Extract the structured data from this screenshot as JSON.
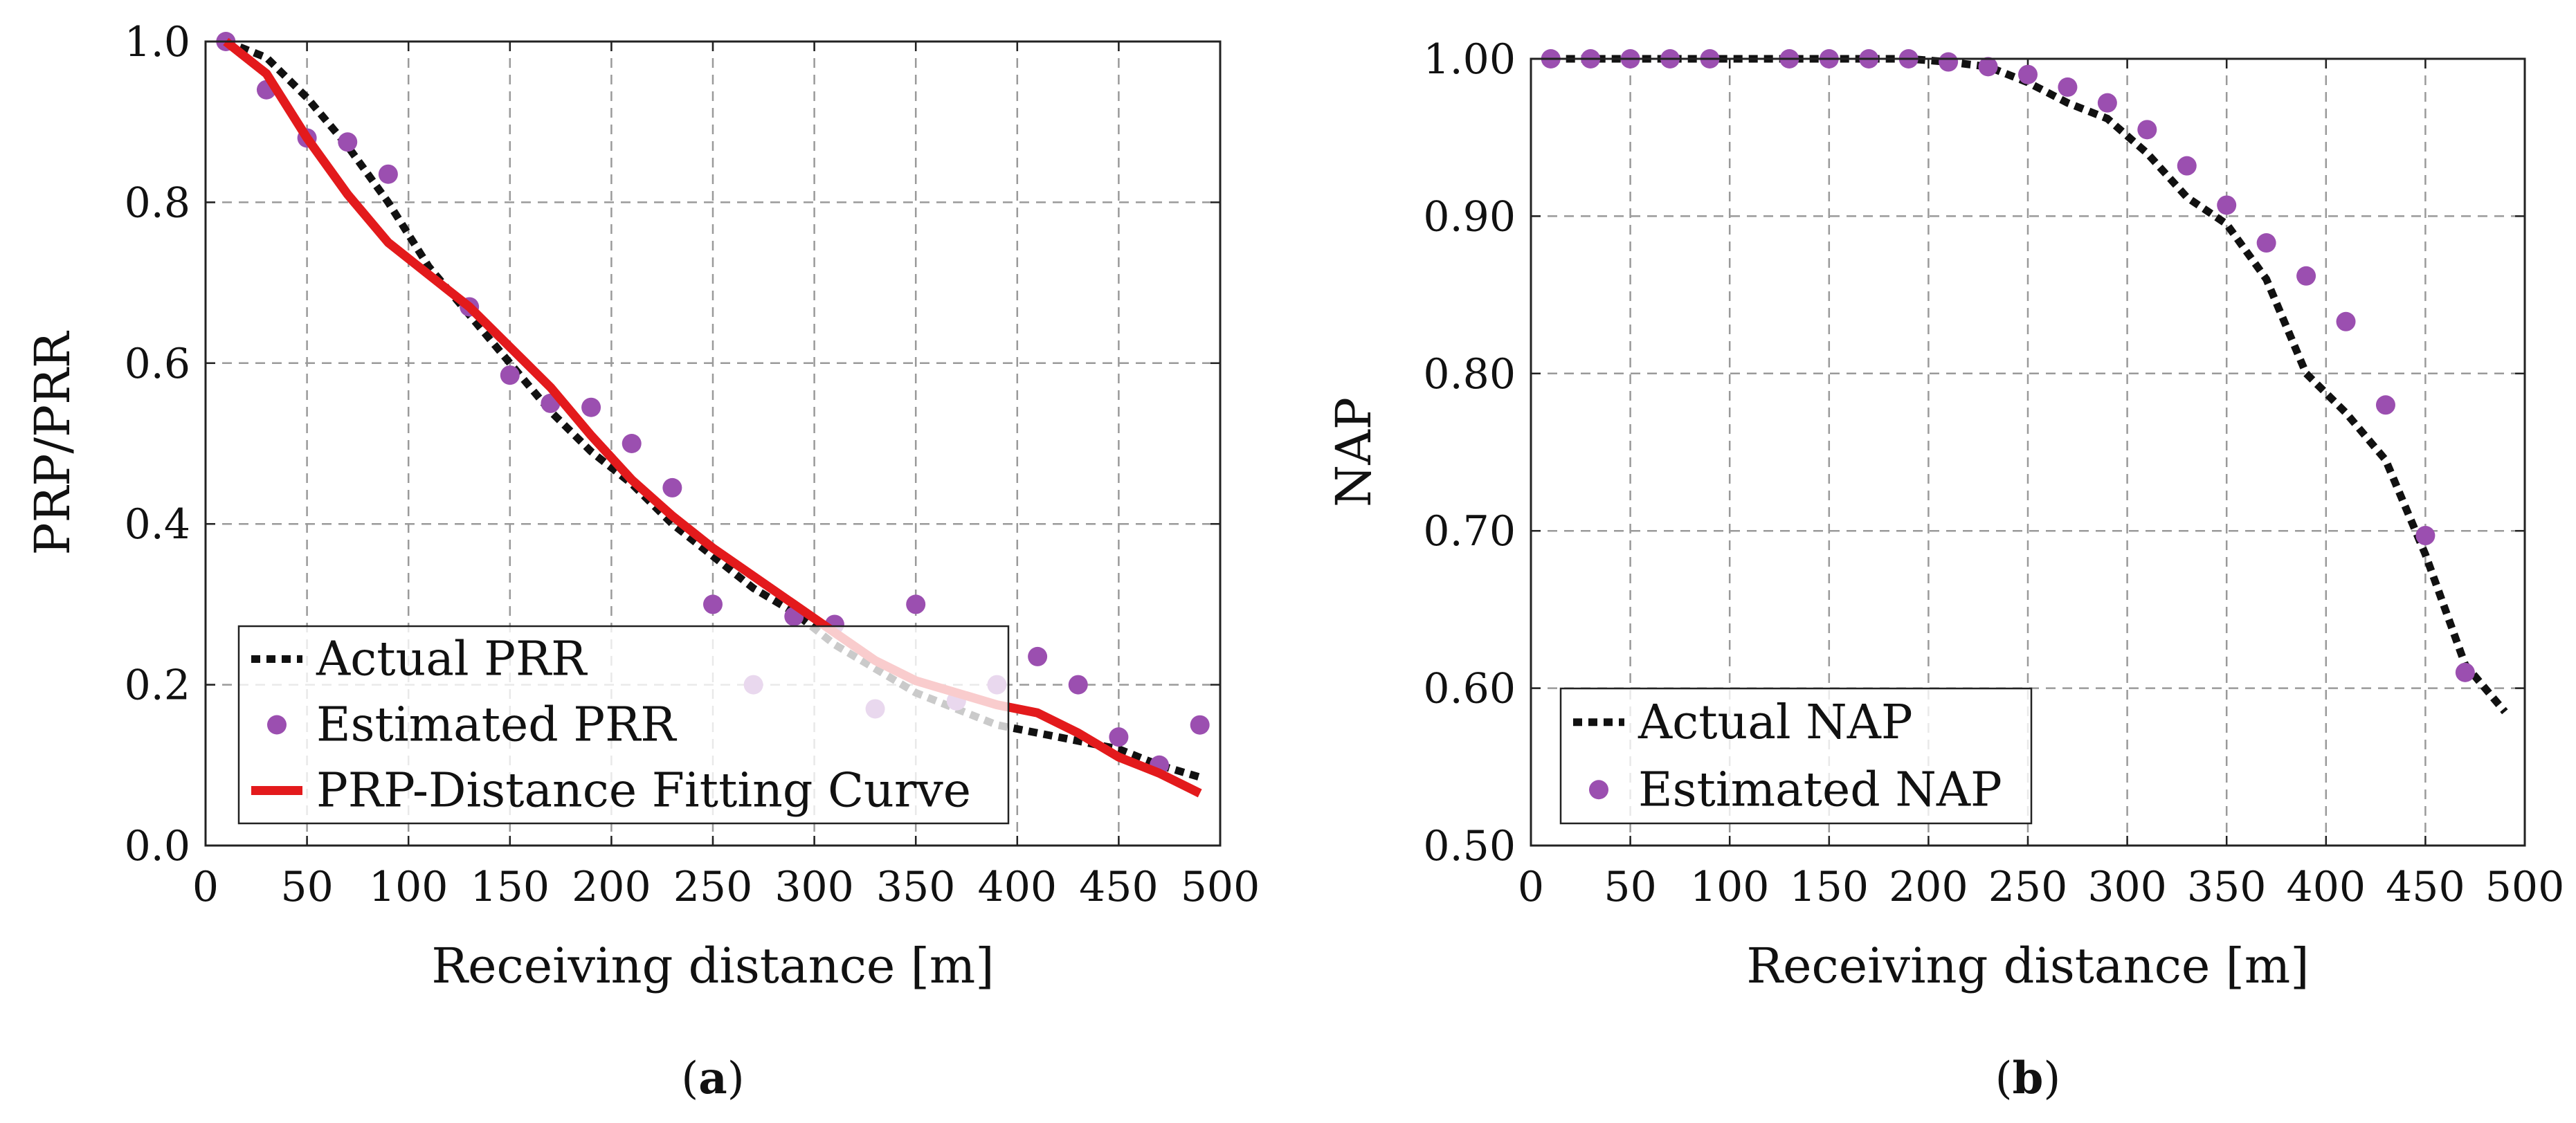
{
  "colors": {
    "actual": "#111111",
    "estimated": "#9b4fb0",
    "fitting": "#e31a1c",
    "grid": "#9a9a9a",
    "frame": "#222222"
  },
  "chart_data": [
    {
      "type": "line",
      "panel": "a",
      "caption_prefix": "(",
      "caption_letter": "a",
      "caption_suffix": ")",
      "xlabel": "Receiving distance [m]",
      "ylabel": "PRP/PRR",
      "xlim": [
        0,
        500
      ],
      "ylim": [
        0,
        1
      ],
      "xticks": [
        0,
        50,
        100,
        150,
        200,
        250,
        300,
        350,
        400,
        450,
        500
      ],
      "xtick_labels": [
        "0",
        "50",
        "100",
        "150",
        "200",
        "250",
        "300",
        "350",
        "400",
        "450",
        "500"
      ],
      "yticks": [
        0,
        0.2,
        0.4,
        0.6,
        0.8,
        1.0
      ],
      "ytick_labels": [
        "0.0",
        "0.2",
        "0.4",
        "0.6",
        "0.8",
        "1.0"
      ],
      "grid": true,
      "legend_position": "bottom-left",
      "series": [
        {
          "name": "Actual PRR",
          "style": "dotted-line",
          "x": [
            10,
            30,
            50,
            70,
            90,
            110,
            130,
            150,
            170,
            190,
            210,
            230,
            250,
            270,
            290,
            310,
            330,
            350,
            370,
            390,
            410,
            430,
            450,
            470,
            490
          ],
          "y": [
            1.0,
            0.98,
            0.93,
            0.87,
            0.8,
            0.72,
            0.66,
            0.6,
            0.54,
            0.49,
            0.45,
            0.4,
            0.36,
            0.32,
            0.29,
            0.25,
            0.22,
            0.19,
            0.17,
            0.15,
            0.14,
            0.13,
            0.12,
            0.1,
            0.085
          ]
        },
        {
          "name": "Estimated PRR",
          "style": "markers",
          "x": [
            10,
            30,
            50,
            70,
            90,
            130,
            150,
            170,
            190,
            210,
            230,
            250,
            270,
            290,
            310,
            330,
            350,
            370,
            390,
            410,
            430,
            450,
            470,
            490
          ],
          "y": [
            1.0,
            0.94,
            0.88,
            0.875,
            0.835,
            0.67,
            0.585,
            0.55,
            0.545,
            0.5,
            0.445,
            0.3,
            0.2,
            0.285,
            0.275,
            0.17,
            0.3,
            0.18,
            0.2,
            0.235,
            0.2,
            0.135,
            0.1,
            0.15
          ]
        },
        {
          "name": "PRP-Distance Fitting Curve",
          "style": "solid-line",
          "x": [
            10,
            30,
            50,
            70,
            90,
            110,
            130,
            150,
            170,
            190,
            210,
            230,
            250,
            270,
            290,
            310,
            330,
            350,
            370,
            390,
            410,
            430,
            450,
            470,
            490
          ],
          "y": [
            1.0,
            0.96,
            0.88,
            0.81,
            0.75,
            0.71,
            0.67,
            0.62,
            0.57,
            0.51,
            0.455,
            0.41,
            0.37,
            0.335,
            0.3,
            0.265,
            0.23,
            0.205,
            0.19,
            0.175,
            0.165,
            0.14,
            0.11,
            0.09,
            0.065
          ]
        }
      ]
    },
    {
      "type": "line",
      "panel": "b",
      "caption_prefix": "(",
      "caption_letter": "b",
      "caption_suffix": ")",
      "xlabel": "Receiving distance [m]",
      "ylabel": "NAP",
      "xlim": [
        0,
        500
      ],
      "ylim": [
        0.5,
        1.0
      ],
      "xticks": [
        0,
        50,
        100,
        150,
        200,
        250,
        300,
        350,
        400,
        450,
        500
      ],
      "xtick_labels": [
        "0",
        "50",
        "100",
        "150",
        "200",
        "250",
        "300",
        "350",
        "400",
        "450",
        "500"
      ],
      "yticks": [
        0.5,
        0.6,
        0.7,
        0.8,
        0.9,
        1.0
      ],
      "ytick_labels": [
        "0.50",
        "0.60",
        "0.70",
        "0.80",
        "0.90",
        "1.00"
      ],
      "grid": true,
      "legend_position": "bottom-left",
      "series": [
        {
          "name": "Actual NAP",
          "style": "dotted-line",
          "x": [
            10,
            30,
            50,
            70,
            90,
            110,
            130,
            150,
            170,
            190,
            210,
            230,
            250,
            270,
            290,
            310,
            330,
            350,
            370,
            390,
            410,
            430,
            450,
            470,
            490
          ],
          "y": [
            1.0,
            1.0,
            1.0,
            1.0,
            1.0,
            1.0,
            1.0,
            1.0,
            1.0,
            1.0,
            0.998,
            0.995,
            0.985,
            0.972,
            0.962,
            0.94,
            0.912,
            0.895,
            0.86,
            0.8,
            0.775,
            0.745,
            0.685,
            0.615,
            0.585
          ]
        },
        {
          "name": "Estimated NAP",
          "style": "markers",
          "x": [
            10,
            30,
            50,
            70,
            90,
            130,
            150,
            170,
            190,
            210,
            230,
            250,
            270,
            290,
            310,
            330,
            350,
            370,
            390,
            410,
            430,
            450,
            470
          ],
          "y": [
            1.0,
            1.0,
            1.0,
            1.0,
            1.0,
            1.0,
            1.0,
            1.0,
            1.0,
            0.998,
            0.995,
            0.99,
            0.982,
            0.972,
            0.955,
            0.932,
            0.907,
            0.883,
            0.862,
            0.833,
            0.78,
            0.697,
            0.61
          ]
        }
      ]
    }
  ]
}
